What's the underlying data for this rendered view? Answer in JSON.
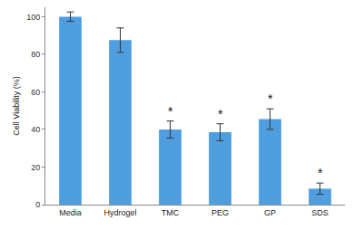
{
  "chart_data": {
    "type": "bar",
    "categories": [
      "Media",
      "Hydrogel",
      "TMC",
      "PEG",
      "GP",
      "SDS"
    ],
    "values": [
      100,
      87.5,
      40,
      38.5,
      45.5,
      8.5
    ],
    "errors": [
      2.5,
      6.5,
      4.5,
      4.5,
      5.5,
      3
    ],
    "color": "#4f9fe0",
    "y_label": "Cell Viability (%)",
    "ylim": [
      0,
      105
    ],
    "yticks": [
      0,
      20,
      40,
      60,
      80,
      100
    ],
    "grid": false,
    "annotations": [
      {
        "text": "*",
        "category": "TMC"
      },
      {
        "text": "*",
        "category": "PEG"
      },
      {
        "text": "*",
        "category": "GP"
      },
      {
        "text": "*",
        "category": "SDS"
      }
    ]
  }
}
